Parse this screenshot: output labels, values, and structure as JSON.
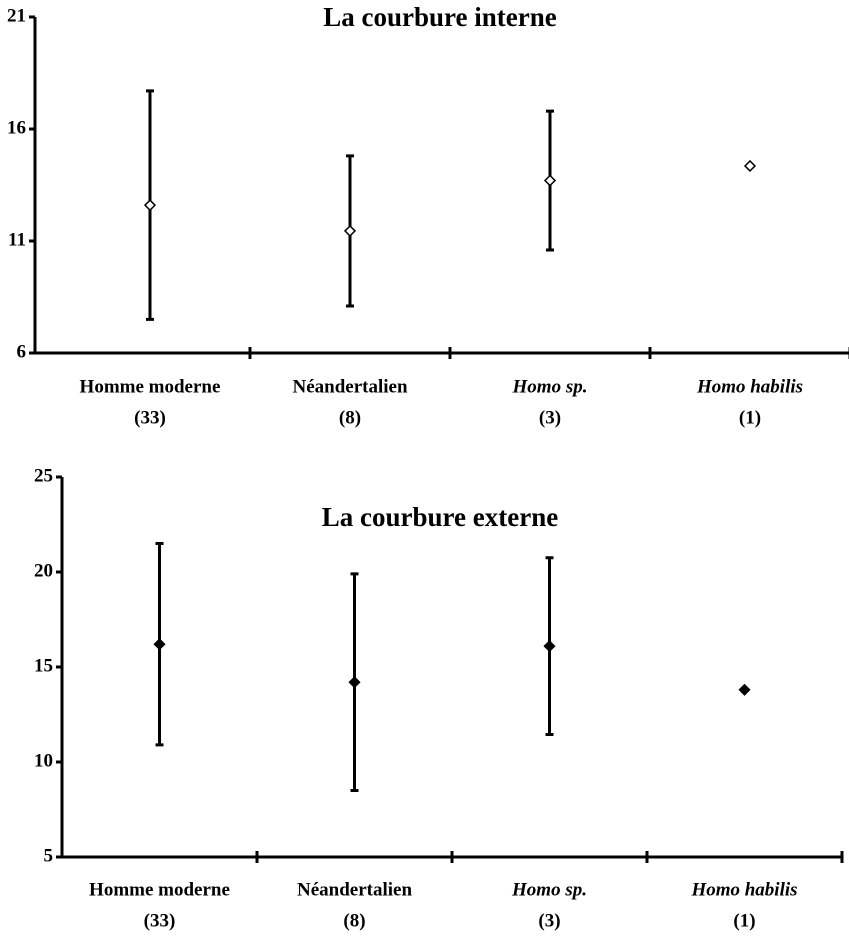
{
  "chart_data": [
    {
      "type": "errorbar",
      "title": "La courbure interne",
      "categories": [
        "Homme moderne",
        "Néandertalien",
        "Homo sp.",
        "Homo habilis"
      ],
      "sample_sizes": [
        "(33)",
        "(8)",
        "(3)",
        "(1)"
      ],
      "italic_categories": [
        false,
        false,
        true,
        true
      ],
      "values": [
        12.6,
        11.45,
        13.7,
        14.35
      ],
      "errors": [
        5.1,
        3.35,
        3.1,
        null
      ],
      "marker": "open-diamond",
      "color": "#000000",
      "ylim": [
        6,
        21
      ],
      "yticks": [
        6,
        11,
        16,
        21
      ]
    },
    {
      "type": "errorbar",
      "title": "La courbure externe",
      "categories": [
        "Homme moderne",
        "Néandertalien",
        "Homo sp.",
        "Homo habilis"
      ],
      "sample_sizes": [
        "(33)",
        "(8)",
        "(3)",
        "(1)"
      ],
      "italic_categories": [
        false,
        false,
        true,
        true
      ],
      "values": [
        16.2,
        14.2,
        16.1,
        13.8
      ],
      "errors": [
        5.3,
        5.7,
        4.65,
        null
      ],
      "marker": "filled-diamond",
      "color": "#000000",
      "ylim": [
        5,
        25
      ],
      "yticks": [
        5,
        10,
        15,
        20,
        25
      ]
    }
  ]
}
